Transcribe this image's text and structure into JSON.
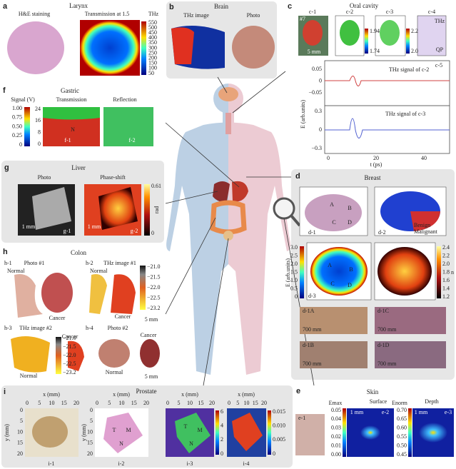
{
  "a": {
    "letter": "a",
    "title": "Larynx",
    "left_label": "H&E staining",
    "right_label": "Transmission at 1.5",
    "unit": "THz",
    "colorbar_ticks": [
      "550",
      "500",
      "450",
      "400",
      "350",
      "300",
      "250",
      "200",
      "150",
      "100",
      "50"
    ]
  },
  "b": {
    "letter": "b",
    "title": "Brain",
    "left_label": "THz image",
    "right_label": "Photo"
  },
  "c": {
    "letter": "c",
    "title": "Oral cavity",
    "subpanels": [
      "c-1",
      "c-2",
      "c-3",
      "c-4"
    ],
    "sample": "#7",
    "scale": "5 mm",
    "c2_ticks": [
      "1.94",
      "1.74"
    ],
    "c3_ticks": [
      "2.2",
      "2.0"
    ],
    "c4_labels": [
      "THz",
      "QP"
    ],
    "plot_label": "c-5",
    "y_label": "E (arb.units)",
    "x_label": "t (ps)",
    "top_legend": "THz signal of c-2",
    "bottom_legend": "THz signal of c-3",
    "top_yticks": [
      "0.05",
      "0",
      "−0.05"
    ],
    "bottom_yticks": [
      "0.3",
      "0",
      "−0.3"
    ],
    "xticks": [
      "0",
      "20",
      "40"
    ]
  },
  "f": {
    "letter": "f",
    "title": "Gastric",
    "colorbar_label": "Signal (V)",
    "left_label": "Transmission",
    "right_label": "Reflection",
    "colorbar_ticks": [
      "1.00",
      "0.75",
      "0.50",
      "0.25",
      "0"
    ],
    "yticks": [
      "24",
      "16",
      "8",
      "0"
    ],
    "subpanels": [
      "f-1",
      "f-2"
    ],
    "inset": "N"
  },
  "g": {
    "letter": "g",
    "title": "Liver",
    "left_label": "Photo",
    "right_label": "Phase-shift",
    "colorbar_ticks": [
      "0.61",
      "0"
    ],
    "unit": "rad",
    "scales": [
      "1 mm",
      "1 mm"
    ],
    "subpanels": [
      "g-1",
      "g-2"
    ]
  },
  "h": {
    "letter": "h",
    "title": "Colon",
    "panels": [
      {
        "id": "h-1",
        "label": "Photo #1",
        "normal": "Normal",
        "cancer": "Cancer"
      },
      {
        "id": "h-2",
        "label": "THz image #1",
        "normal": "Normal",
        "cancer": "Cancer",
        "scale": "5 mm",
        "colorbar_ticks": [
          "−21.0",
          "−21.5",
          "−22.0",
          "−22.5",
          "−23.2"
        ]
      },
      {
        "id": "h-3",
        "label": "THz image #2",
        "normal": "Normal",
        "cancer": "Cancer",
        "colorbar_ticks": [
          "−21.0",
          "−21.5",
          "−22.0",
          "−22.5",
          "−23.2"
        ]
      },
      {
        "id": "h-4",
        "label": "Photo #2",
        "normal": "Normal",
        "cancer": "Cancer",
        "scale": "5 mm"
      }
    ]
  },
  "d": {
    "letter": "d",
    "title": "Breast",
    "regions": [
      "A",
      "B",
      "C",
      "D"
    ],
    "subpanels": [
      "d-1",
      "d-2",
      "d-3",
      "d-4"
    ],
    "legend": [
      "Benign",
      "Malignant"
    ],
    "left_label": "E (arb.units)",
    "left_ticks": [
      "3.0",
      "2.5",
      "2.0",
      "1.5",
      "1.0",
      "0.5",
      "0"
    ],
    "right_label": "n",
    "right_ticks": [
      "2.4",
      "2.2",
      "2.0",
      "1.8",
      "1.6",
      "1.4",
      "1.2"
    ],
    "histology": [
      "d-1A",
      "d-1C",
      "d-1B",
      "d-1D"
    ],
    "histology_scale": "700 mm"
  },
  "i": {
    "letter": "i",
    "title": "Prostate",
    "x_label": "x (mm)",
    "y_label": "y (mm)",
    "ticks": [
      "0",
      "5",
      "10",
      "15",
      "20"
    ],
    "subpanels": [
      "i-1",
      "i-2",
      "i-3",
      "i-4"
    ],
    "regions": [
      "T",
      "M",
      "N"
    ],
    "i3_ticks": [
      "6",
      "4",
      "2",
      "0"
    ],
    "i4_ticks": [
      "0.015",
      "0.010",
      "0.005",
      "0"
    ]
  },
  "e": {
    "letter": "e",
    "title": "Skin",
    "left_unit": "Emax",
    "left_label": "Surface",
    "right_unit": "Enorm",
    "right_label": "Depth",
    "subpanels": [
      "e-1",
      "e-2",
      "e-3"
    ],
    "scale": "1 mm",
    "left_ticks": [
      "0.05",
      "0.04",
      "0.03",
      "0.02",
      "0.01",
      "0.00"
    ],
    "right_ticks": [
      "0.70",
      "0.65",
      "0.60",
      "0.55",
      "0.50",
      "0.45"
    ]
  }
}
